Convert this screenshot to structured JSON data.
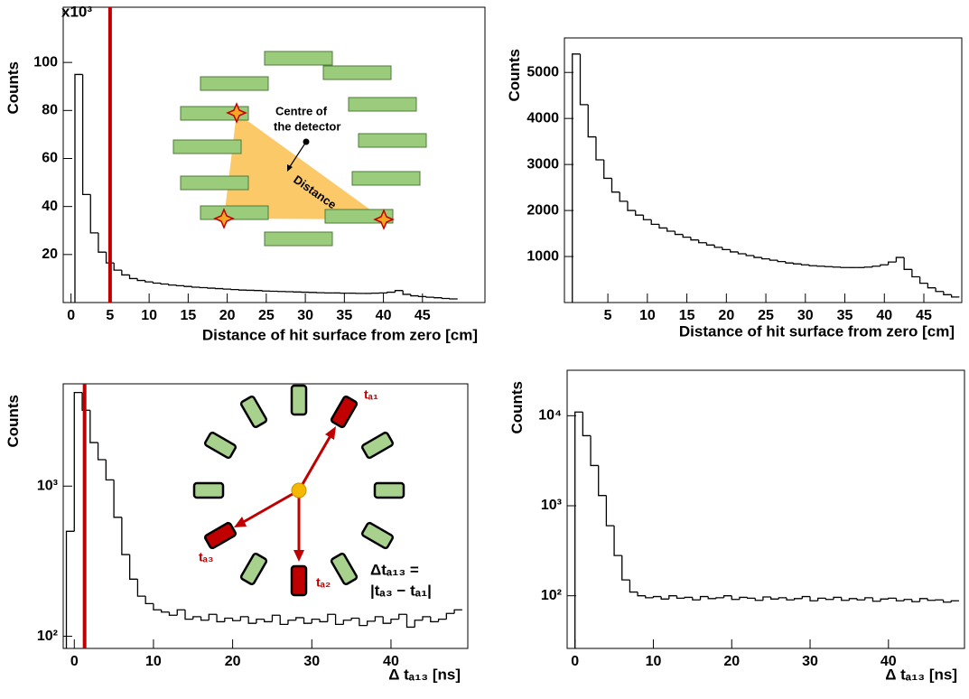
{
  "chart_data": [
    {
      "type": "histogram",
      "y_label": "Counts",
      "y_multiplier": "x10³",
      "x_label": "Distance of hit surface from zero [cm]",
      "bins": [
        0.5,
        1.5,
        2.5,
        3.5,
        4.5,
        5.5,
        6.5,
        7.5,
        8.5,
        9.5,
        10.5,
        11.5,
        12.5,
        13.5,
        14.5,
        15.5,
        16.5,
        17.5,
        18.5,
        19.5,
        20.5,
        21.5,
        22.5,
        23.5,
        24.5,
        25.5,
        26.5,
        27.5,
        28.5,
        29.5,
        30.5,
        31.5,
        32.5,
        33.5,
        34.5,
        35.5,
        36.5,
        37.5,
        38.5,
        39.5,
        40.5,
        41.5,
        42.5,
        43.5,
        44.5,
        45.5,
        46.5,
        47.5,
        48.5,
        49.5
      ],
      "values": [
        95,
        45,
        29,
        21,
        16.5,
        13.5,
        11.5,
        10,
        9.2,
        8.6,
        8.1,
        7.7,
        7.3,
        7,
        6.7,
        6.4,
        6.2,
        6,
        5.8,
        5.6,
        5.4,
        5.2,
        5.1,
        5,
        4.8,
        4.7,
        4.6,
        4.5,
        4.4,
        4.3,
        4.2,
        4.1,
        4,
        4,
        3.9,
        3.9,
        3.8,
        3.8,
        3.9,
        4,
        4.3,
        5,
        3.4,
        2.8,
        2.5,
        2.2,
        2,
        1.7,
        1.5
      ],
      "color": "#000000",
      "xlim": [
        -1,
        53
      ],
      "ylim": [
        0,
        123
      ],
      "xticks": [
        0,
        5,
        10,
        15,
        20,
        25,
        30,
        35,
        40,
        45
      ],
      "yticks": [
        20,
        40,
        60,
        80,
        100
      ],
      "vline": 5,
      "vline_color": "#c00000",
      "log_y": false,
      "annotations": [
        "Centre of",
        "the detector",
        "Distance"
      ]
    },
    {
      "type": "histogram",
      "y_label": "Counts",
      "x_label": "Distance of hit surface from zero [cm]",
      "bins": [
        0.5,
        1.5,
        2.5,
        3.5,
        4.5,
        5.5,
        6.5,
        7.5,
        8.5,
        9.5,
        10.5,
        11.5,
        12.5,
        13.5,
        14.5,
        15.5,
        16.5,
        17.5,
        18.5,
        19.5,
        20.5,
        21.5,
        22.5,
        23.5,
        24.5,
        25.5,
        26.5,
        27.5,
        28.5,
        29.5,
        30.5,
        31.5,
        32.5,
        33.5,
        34.5,
        35.5,
        36.5,
        37.5,
        38.5,
        39.5,
        40.5,
        41.5,
        42.5,
        43.5,
        44.5,
        45.5,
        46.5,
        47.5,
        48.5,
        49.5
      ],
      "values": [
        5400,
        4300,
        3600,
        3100,
        2700,
        2400,
        2200,
        2000,
        1900,
        1800,
        1700,
        1620,
        1550,
        1480,
        1420,
        1360,
        1300,
        1250,
        1200,
        1150,
        1100,
        1060,
        1020,
        980,
        950,
        920,
        890,
        860,
        840,
        820,
        800,
        790,
        780,
        770,
        760,
        760,
        760,
        770,
        790,
        820,
        880,
        980,
        720,
        560,
        420,
        320,
        240,
        170,
        120
      ],
      "color": "#000000",
      "xlim": [
        -0.5,
        49.8
      ],
      "ylim": [
        0,
        5750
      ],
      "xticks": [
        5,
        10,
        15,
        20,
        25,
        30,
        35,
        40,
        45
      ],
      "yticks": [
        1000,
        2000,
        3000,
        4000,
        5000
      ],
      "log_y": false
    },
    {
      "type": "histogram",
      "y_label": "Counts",
      "x_label": "Δ tₐ₁₃ [ns]",
      "bins": [
        -1,
        0,
        1,
        2,
        3,
        4,
        5,
        6,
        7,
        8,
        9,
        10,
        11,
        12,
        13,
        14,
        15,
        16,
        17,
        18,
        19,
        20,
        21,
        22,
        23,
        24,
        25,
        26,
        27,
        28,
        29,
        30,
        31,
        32,
        33,
        34,
        35,
        36,
        37,
        38,
        39,
        40,
        41,
        42,
        43,
        44,
        45,
        46,
        47,
        48,
        49
      ],
      "values": [
        500,
        4200,
        3200,
        1950,
        1500,
        1100,
        620,
        350,
        240,
        185,
        165,
        150,
        145,
        138,
        150,
        130,
        135,
        128,
        140,
        125,
        132,
        127,
        135,
        122,
        130,
        125,
        138,
        120,
        128,
        133,
        122,
        130,
        125,
        140,
        120,
        128,
        132,
        118,
        126,
        135,
        122,
        130,
        140,
        115,
        128,
        135,
        125,
        130,
        142,
        150
      ],
      "color": "#000000",
      "xlim": [
        -1.4,
        49.7
      ],
      "ylim": [
        83,
        4800
      ],
      "log_y": true,
      "xticks": [
        0,
        10,
        20,
        30,
        40
      ],
      "yticks": [
        {
          "value": 100,
          "label": "10²"
        },
        {
          "value": 1000,
          "label": "10³"
        }
      ],
      "vline": 1.3,
      "vline_color": "#c00000",
      "annotations": [
        "tₐ₁",
        "tₐ₂",
        "tₐ₃",
        "Δtₐ₁₃ =",
        "|tₐ₃ − tₐ₁|"
      ]
    },
    {
      "type": "histogram",
      "y_label": "Counts",
      "x_label": "Δ tₐ₁₃ [ns]",
      "bins": [
        0,
        1,
        2,
        3,
        4,
        5,
        6,
        7,
        8,
        9,
        10,
        11,
        12,
        13,
        14,
        15,
        16,
        17,
        18,
        19,
        20,
        21,
        22,
        23,
        24,
        25,
        26,
        27,
        28,
        29,
        30,
        31,
        32,
        33,
        34,
        35,
        36,
        37,
        38,
        39,
        40,
        41,
        42,
        43,
        44,
        45,
        46,
        47,
        48,
        49
      ],
      "values": [
        11000,
        6000,
        2800,
        1300,
        600,
        280,
        150,
        110,
        100,
        95,
        98,
        92,
        100,
        94,
        96,
        90,
        98,
        93,
        95,
        100,
        91,
        96,
        94,
        89,
        97,
        92,
        95,
        90,
        93,
        98,
        88,
        94,
        91,
        96,
        89,
        93,
        90,
        95,
        87,
        92,
        94,
        88,
        91,
        86,
        93,
        89,
        90,
        85,
        88
      ],
      "color": "#000000",
      "xlim": [
        -1,
        49.7
      ],
      "ylim": [
        26,
        32000
      ],
      "log_y": true,
      "xticks": [
        0,
        10,
        20,
        30,
        40
      ],
      "yticks": [
        {
          "value": 100,
          "label": "10²"
        },
        {
          "value": 1000,
          "label": "10³"
        },
        {
          "value": 10000,
          "label": "10⁴"
        }
      ]
    }
  ]
}
